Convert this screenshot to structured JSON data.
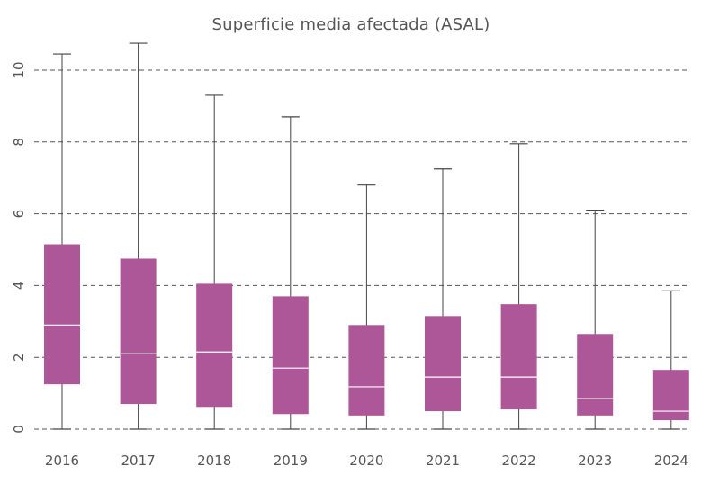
{
  "chart_data": {
    "type": "boxplot",
    "title": "Superficie media afectada (ASAL)",
    "xlabel": "",
    "ylabel": "",
    "ylim": [
      0,
      10.8
    ],
    "yticks": [
      0,
      2,
      4,
      6,
      8,
      10
    ],
    "grid": "horizontal dashed",
    "categories": [
      "2016",
      "2017",
      "2018",
      "2019",
      "2020",
      "2021",
      "2022",
      "2023",
      "2024"
    ],
    "series": [
      {
        "boxes": [
          {
            "min": 0.0,
            "q1": 1.25,
            "median": 2.9,
            "q3": 5.15,
            "max": 10.45
          },
          {
            "min": 0.0,
            "q1": 0.7,
            "median": 2.1,
            "q3": 4.75,
            "max": 10.75
          },
          {
            "min": 0.0,
            "q1": 0.62,
            "median": 2.15,
            "q3": 4.05,
            "max": 9.3
          },
          {
            "min": 0.0,
            "q1": 0.42,
            "median": 1.7,
            "q3": 3.7,
            "max": 8.7
          },
          {
            "min": 0.0,
            "q1": 0.38,
            "median": 1.18,
            "q3": 2.9,
            "max": 6.8
          },
          {
            "min": 0.0,
            "q1": 0.5,
            "median": 1.45,
            "q3": 3.15,
            "max": 7.25
          },
          {
            "min": 0.0,
            "q1": 0.55,
            "median": 1.45,
            "q3": 3.48,
            "max": 7.95
          },
          {
            "min": 0.0,
            "q1": 0.38,
            "median": 0.85,
            "q3": 2.65,
            "max": 6.1
          },
          {
            "min": 0.0,
            "q1": 0.25,
            "median": 0.5,
            "q3": 1.65,
            "max": 3.85
          }
        ]
      }
    ],
    "colors": {
      "box_fill": "#ad5799",
      "median_line": "#ffffff",
      "whisker": "#444444",
      "grid": "#555555",
      "text": "#555555"
    }
  }
}
